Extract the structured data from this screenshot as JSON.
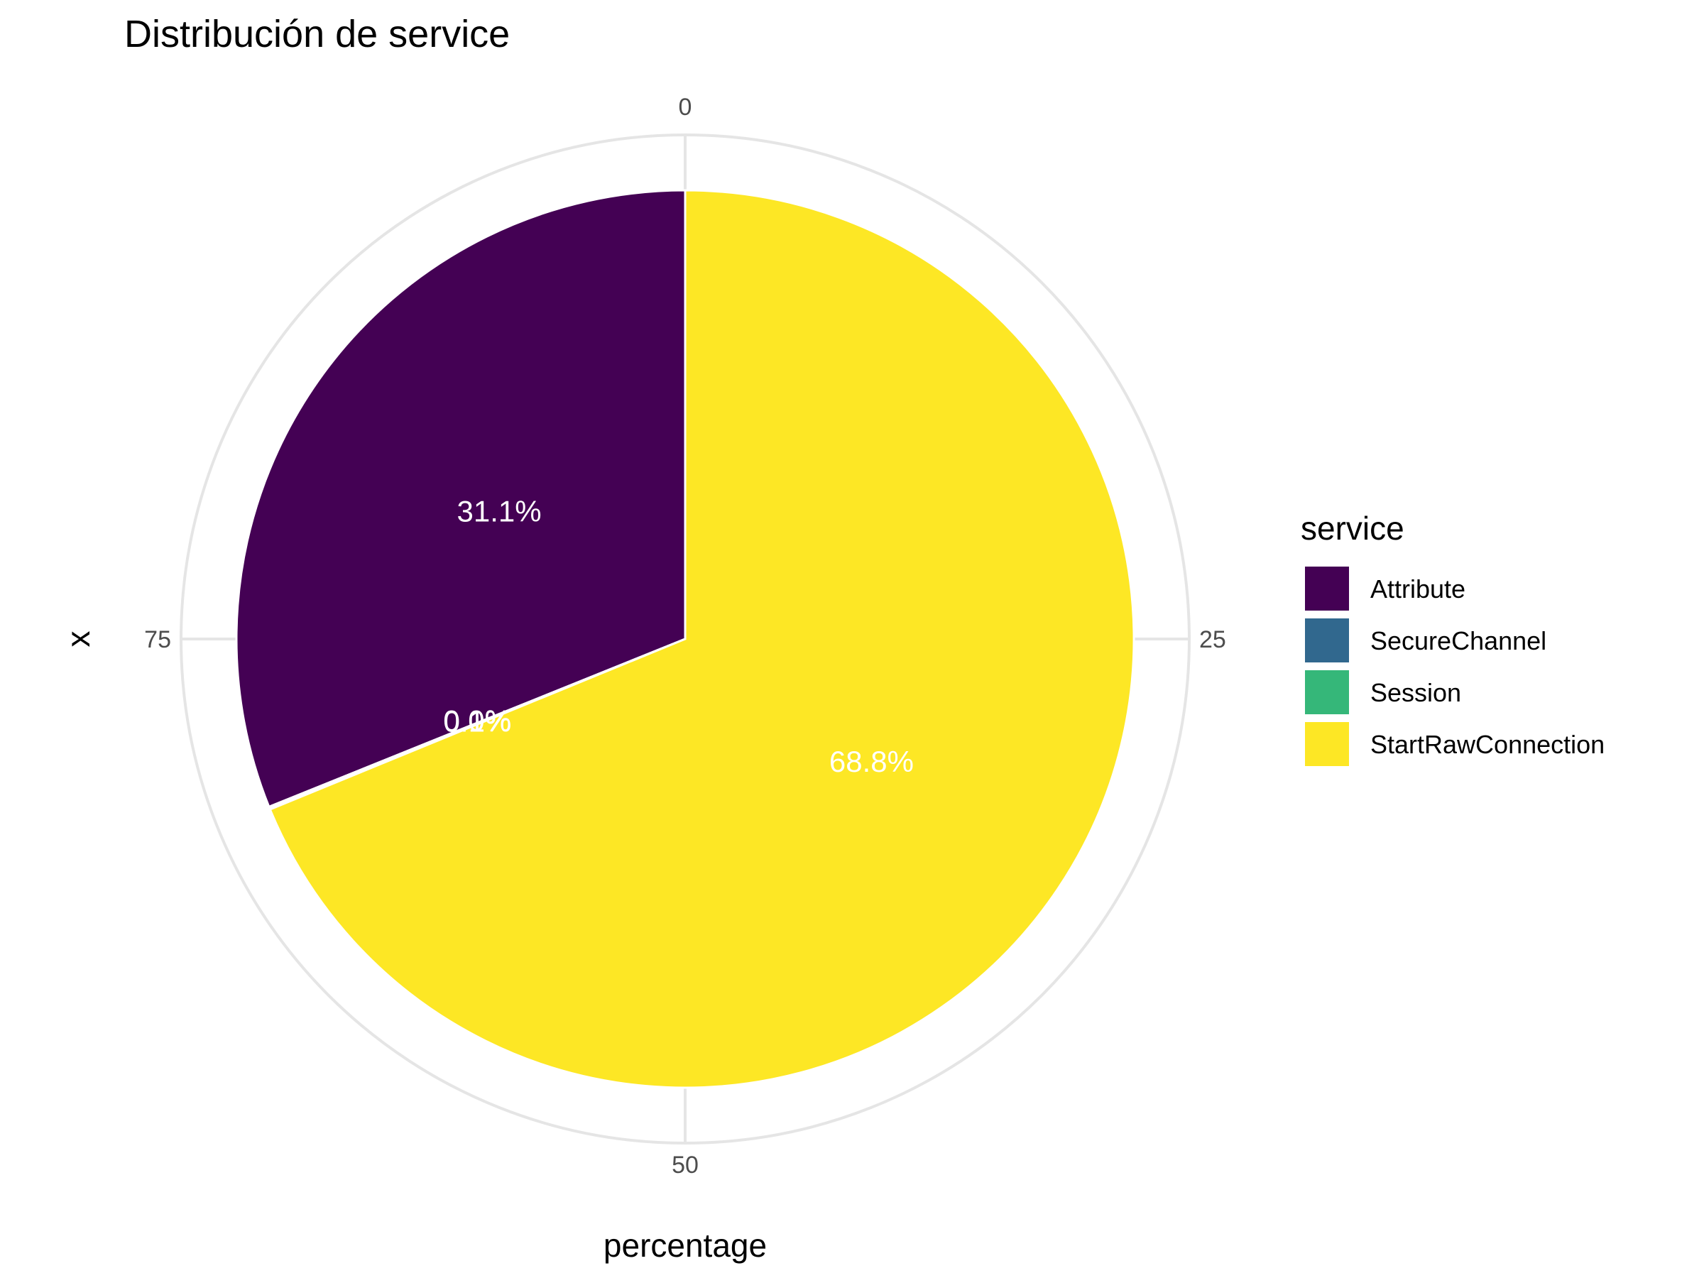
{
  "chart_data": {
    "type": "pie",
    "title": "Distribución de service",
    "xlabel": "percentage",
    "ylabel": "x",
    "theta_ticks": [
      "0",
      "25",
      "50",
      "75"
    ],
    "slices": [
      {
        "label": "Attribute",
        "value": 31.1,
        "color": "#440154",
        "data_label": "31.1%"
      },
      {
        "label": "SecureChannel",
        "value": 0.05,
        "color": "#31688E",
        "data_label": "0.0%"
      },
      {
        "label": "Session",
        "value": 0.05,
        "color": "#35B779",
        "data_label": "0.1%"
      },
      {
        "label": "StartRawConnection",
        "value": 68.8,
        "color": "#FDE725",
        "data_label": "68.8%"
      }
    ],
    "legend": {
      "title": "service",
      "placement": "right",
      "items": [
        "Attribute",
        "SecureChannel",
        "Session",
        "StartRawConnection"
      ]
    },
    "grid": true
  }
}
